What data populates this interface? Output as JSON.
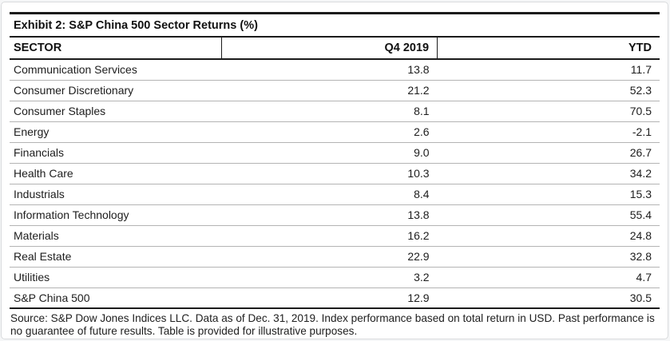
{
  "exhibit": {
    "title": "Exhibit 2: S&P China 500 Sector Returns (%)"
  },
  "chart_data": {
    "type": "table",
    "title": "Exhibit 2: S&P China 500 Sector Returns (%)",
    "columns": [
      "SECTOR",
      "Q4 2019",
      "YTD"
    ],
    "rows": [
      {
        "sector": "Communication Services",
        "q4_2019": "13.8",
        "ytd": "11.7"
      },
      {
        "sector": "Consumer Discretionary",
        "q4_2019": "21.2",
        "ytd": "52.3"
      },
      {
        "sector": "Consumer Staples",
        "q4_2019": "8.1",
        "ytd": "70.5"
      },
      {
        "sector": "Energy",
        "q4_2019": "2.6",
        "ytd": "-2.1"
      },
      {
        "sector": "Financials",
        "q4_2019": "9.0",
        "ytd": "26.7"
      },
      {
        "sector": "Health Care",
        "q4_2019": "10.3",
        "ytd": "34.2"
      },
      {
        "sector": "Industrials",
        "q4_2019": "8.4",
        "ytd": "15.3"
      },
      {
        "sector": "Information Technology",
        "q4_2019": "13.8",
        "ytd": "55.4"
      },
      {
        "sector": "Materials",
        "q4_2019": "16.2",
        "ytd": "24.8"
      },
      {
        "sector": "Real Estate",
        "q4_2019": "22.9",
        "ytd": "32.8"
      },
      {
        "sector": "Utilities",
        "q4_2019": "3.2",
        "ytd": "4.7"
      },
      {
        "sector": "S&P China 500",
        "q4_2019": "12.9",
        "ytd": "30.5"
      }
    ]
  },
  "footer": {
    "source": "Source: S&P Dow Jones Indices LLC. Data as of Dec. 31, 2019. Index performance based on total return in USD. Past performance is no guarantee of future results. Table is provided for illustrative purposes."
  },
  "colors": {
    "background": "#ffffff",
    "card_border": "#d9dbdd",
    "heavy_rule": "#1b1b1b",
    "row_divider": "#b4b4b4",
    "text": "#1b1b1b"
  }
}
